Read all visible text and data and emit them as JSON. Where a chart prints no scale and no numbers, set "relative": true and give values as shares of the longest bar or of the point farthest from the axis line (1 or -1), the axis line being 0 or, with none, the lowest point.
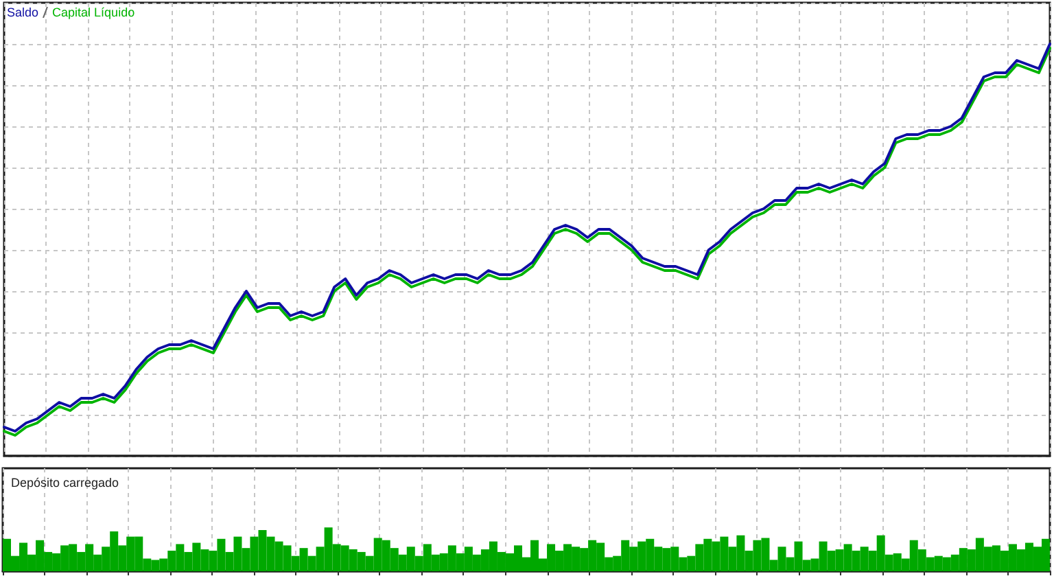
{
  "chart_data": [
    {
      "type": "line",
      "relative": true,
      "legend": "top left",
      "grid": true,
      "marker": "none",
      "line_style": "solid",
      "categories": [
        null,
        null,
        null,
        null,
        null,
        null,
        null,
        null,
        null,
        null,
        null,
        null,
        null,
        null,
        null,
        null,
        null,
        null,
        null,
        null,
        null,
        null,
        null,
        null,
        null,
        null,
        null,
        null,
        null,
        null,
        null,
        null,
        null,
        null,
        null,
        null,
        null,
        null,
        null,
        null,
        null,
        null,
        null,
        null,
        null,
        null,
        null,
        null,
        null,
        null,
        null,
        null,
        null,
        null,
        null,
        null,
        null,
        null,
        null,
        null,
        null,
        null,
        null,
        null,
        null,
        null,
        null,
        null,
        null,
        null,
        null,
        null,
        null,
        null,
        null,
        null,
        null,
        null,
        null,
        null,
        null,
        null,
        null,
        null,
        null,
        null,
        null,
        null,
        null,
        null,
        null,
        null,
        null,
        null,
        null,
        null
      ],
      "series": [
        {
          "name": "Saldo",
          "color": "#0f0fa3",
          "values": [
            0.07,
            0.06,
            0.08,
            0.09,
            0.11,
            0.13,
            0.12,
            0.14,
            0.14,
            0.15,
            0.14,
            0.17,
            0.21,
            0.24,
            0.26,
            0.27,
            0.27,
            0.28,
            0.27,
            0.26,
            0.31,
            0.36,
            0.4,
            0.36,
            0.37,
            0.37,
            0.34,
            0.35,
            0.34,
            0.35,
            0.41,
            0.43,
            0.39,
            0.42,
            0.43,
            0.45,
            0.44,
            0.42,
            0.43,
            0.44,
            0.43,
            0.44,
            0.44,
            0.43,
            0.45,
            0.44,
            0.44,
            0.45,
            0.47,
            0.51,
            0.55,
            0.56,
            0.55,
            0.53,
            0.55,
            0.55,
            0.53,
            0.51,
            0.48,
            0.47,
            0.46,
            0.46,
            0.45,
            0.44,
            0.5,
            0.52,
            0.55,
            0.57,
            0.59,
            0.6,
            0.62,
            0.62,
            0.65,
            0.65,
            0.66,
            0.65,
            0.66,
            0.67,
            0.66,
            0.69,
            0.71,
            0.77,
            0.78,
            0.78,
            0.79,
            0.79,
            0.8,
            0.82,
            0.87,
            0.92,
            0.93,
            0.93,
            0.96,
            0.95,
            0.94,
            1
          ]
        },
        {
          "name": "Capital Líquido",
          "color": "#00b400",
          "values": [
            0.06,
            0.05,
            0.07,
            0.08,
            0.1,
            0.12,
            0.11,
            0.13,
            0.13,
            0.14,
            0.13,
            0.16,
            0.2,
            0.23,
            0.25,
            0.26,
            0.26,
            0.27,
            0.26,
            0.25,
            0.3,
            0.35,
            0.39,
            0.35,
            0.36,
            0.36,
            0.33,
            0.34,
            0.33,
            0.34,
            0.4,
            0.42,
            0.38,
            0.41,
            0.42,
            0.44,
            0.43,
            0.41,
            0.42,
            0.43,
            0.42,
            0.43,
            0.43,
            0.42,
            0.44,
            0.43,
            0.43,
            0.44,
            0.46,
            0.5,
            0.54,
            0.55,
            0.54,
            0.52,
            0.54,
            0.54,
            0.52,
            0.5,
            0.47,
            0.46,
            0.45,
            0.45,
            0.44,
            0.43,
            0.49,
            0.51,
            0.54,
            0.56,
            0.58,
            0.59,
            0.61,
            0.61,
            0.64,
            0.64,
            0.65,
            0.64,
            0.65,
            0.66,
            0.65,
            0.68,
            0.7,
            0.76,
            0.77,
            0.77,
            0.78,
            0.78,
            0.79,
            0.81,
            0.86,
            0.91,
            0.92,
            0.92,
            0.95,
            0.94,
            0.93,
            0.99
          ]
        }
      ]
    },
    {
      "type": "bar",
      "relative": true,
      "title": "Depósito carregado",
      "grid": "x",
      "color": "#00a800",
      "categories": [
        null,
        null,
        null,
        null,
        null,
        null,
        null,
        null,
        null,
        null,
        null,
        null,
        null,
        null,
        null,
        null,
        null,
        null,
        null,
        null,
        null,
        null,
        null,
        null,
        null,
        null,
        null,
        null,
        null,
        null,
        null,
        null,
        null,
        null,
        null,
        null,
        null,
        null,
        null,
        null,
        null,
        null,
        null,
        null,
        null,
        null,
        null,
        null,
        null,
        null,
        null,
        null,
        null,
        null,
        null,
        null,
        null,
        null,
        null,
        null,
        null,
        null,
        null,
        null,
        null,
        null,
        null,
        null,
        null,
        null,
        null,
        null,
        null,
        null,
        null,
        null,
        null,
        null,
        null,
        null,
        null,
        null,
        null,
        null,
        null,
        null,
        null,
        null,
        null,
        null,
        null,
        null,
        null,
        null,
        null,
        null,
        null,
        null,
        null,
        null,
        null,
        null,
        null,
        null,
        null,
        null,
        null,
        null,
        null,
        null,
        null,
        null,
        null,
        null,
        null,
        null,
        null,
        null,
        null,
        null,
        null,
        null,
        null,
        null,
        null,
        null,
        null
      ],
      "values": [
        0.74,
        0.35,
        0.65,
        0.38,
        0.71,
        0.44,
        0.41,
        0.59,
        0.62,
        0.44,
        0.62,
        0.38,
        0.56,
        0.91,
        0.59,
        0.79,
        0.79,
        0.29,
        0.26,
        0.29,
        0.47,
        0.62,
        0.44,
        0.65,
        0.5,
        0.47,
        0.74,
        0.44,
        0.79,
        0.53,
        0.79,
        0.94,
        0.79,
        0.68,
        0.59,
        0.35,
        0.53,
        0.35,
        0.56,
        1,
        0.62,
        0.59,
        0.5,
        0.44,
        0.35,
        0.76,
        0.71,
        0.53,
        0.38,
        0.56,
        0.35,
        0.62,
        0.38,
        0.41,
        0.59,
        0.41,
        0.56,
        0.38,
        0.5,
        0.68,
        0.44,
        0.41,
        0.59,
        0.32,
        0.71,
        0.29,
        0.62,
        0.47,
        0.62,
        0.56,
        0.53,
        0.71,
        0.65,
        0.32,
        0.35,
        0.71,
        0.56,
        0.68,
        0.74,
        0.56,
        0.53,
        0.56,
        0.32,
        0.35,
        0.62,
        0.74,
        0.68,
        0.79,
        0.56,
        0.82,
        0.47,
        0.71,
        0.76,
        0.26,
        0.56,
        0.32,
        0.68,
        0.26,
        0.29,
        0.68,
        0.47,
        0.5,
        0.62,
        0.47,
        0.56,
        0.47,
        0.82,
        0.38,
        0.41,
        0.29,
        0.71,
        0.5,
        0.32,
        0.35,
        0.32,
        0.38,
        0.53,
        0.5,
        0.76,
        0.56,
        0.59,
        0.47,
        0.62,
        0.5,
        0.65,
        0.56,
        0.74
      ]
    }
  ]
}
